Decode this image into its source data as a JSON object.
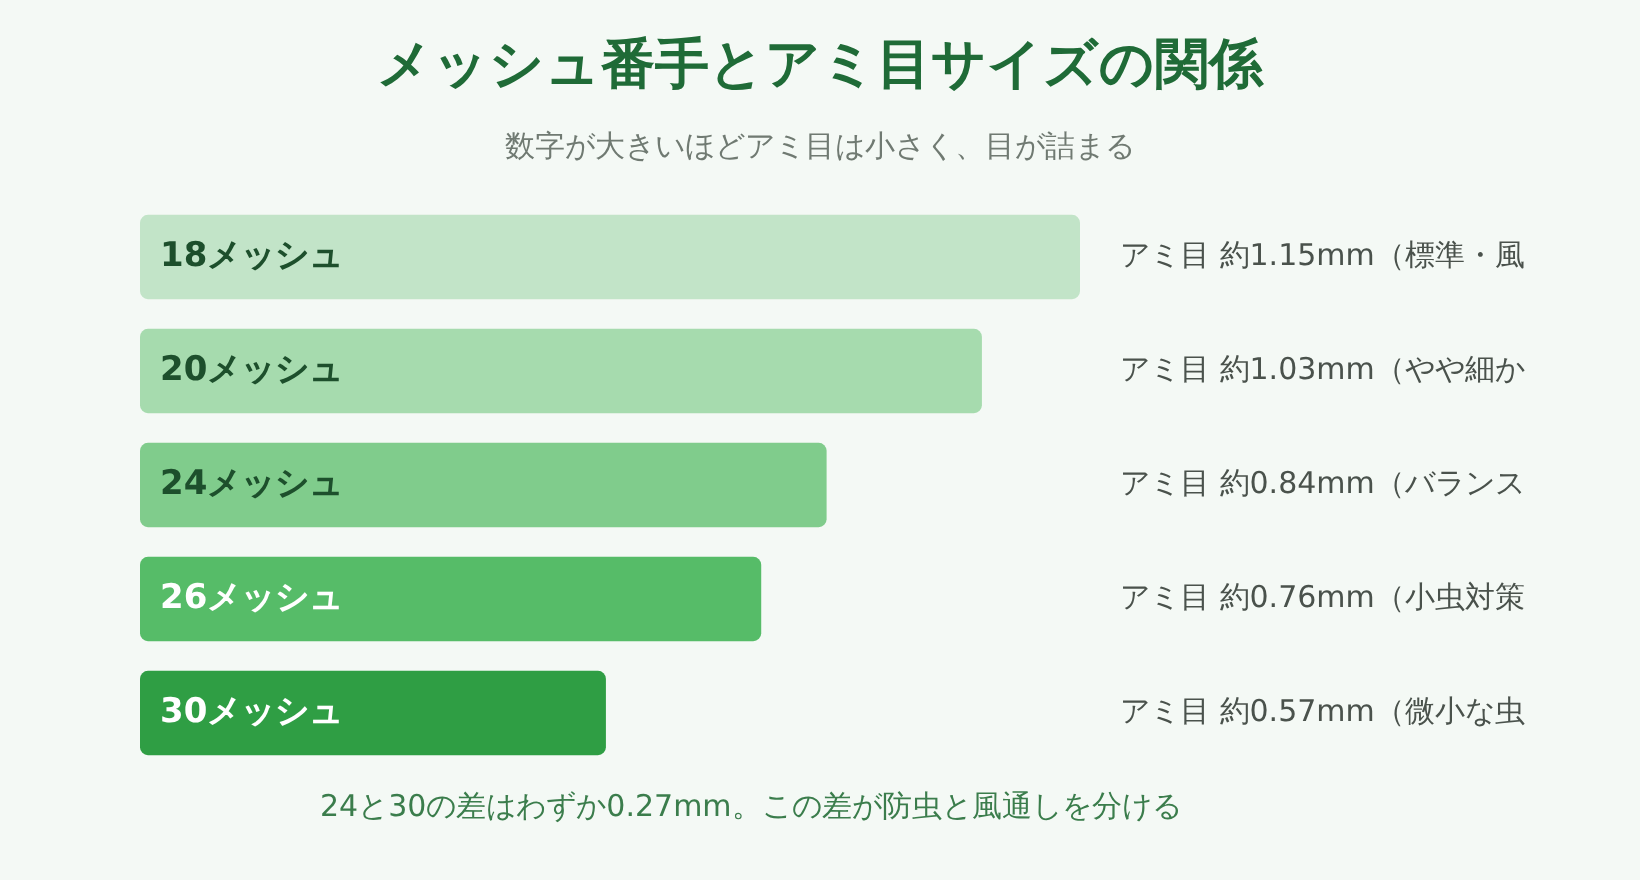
{
  "chart_data": {
    "type": "bar",
    "orientation": "horizontal",
    "xlim": [
      0,
      1.15
    ],
    "tick_labels": false,
    "title": "メッシュ番手とアミ目サイズの関係",
    "subtitle": "数字が大きいほどアミ目は小さく、目が詰まる",
    "categories": [
      "18メッシュ",
      "20メッシュ",
      "24メッシュ",
      "26メッシュ",
      "30メッシュ"
    ],
    "values": [
      1.15,
      1.03,
      0.84,
      0.76,
      0.57
    ],
    "colors": [
      "#c2e4c8",
      "#a6dbae",
      "#80cc8c",
      "#56bc68",
      "#2f9e44"
    ],
    "value_labels": [
      "アミ目 約1.15mm（標準・風",
      "アミ目 約1.03mm（やや細か",
      "アミ目 約0.84mm（バランス",
      "アミ目 約0.76mm（小虫対策",
      "アミ目 約0.57mm（微小な虫"
    ],
    "annotations": [
      "24と30の差はわずか0.27mm。この差が防虫と風通しを分ける"
    ],
    "legend": false
  }
}
